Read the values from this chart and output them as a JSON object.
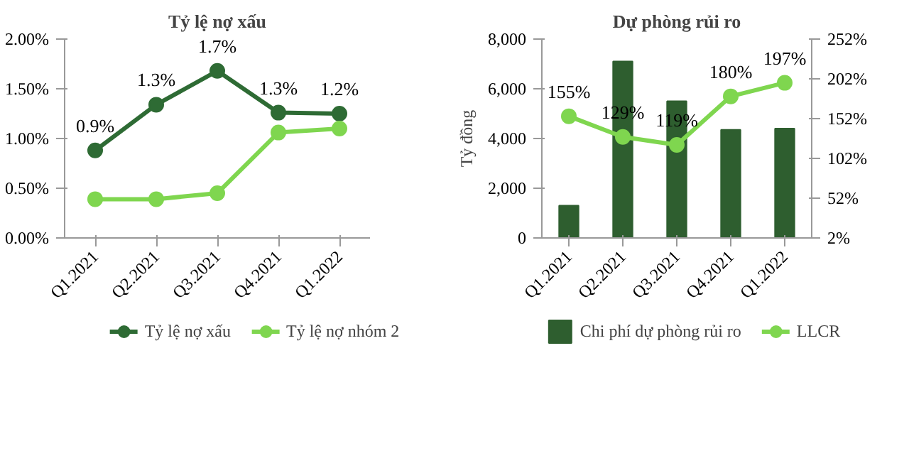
{
  "chart_data": [
    {
      "type": "line",
      "title": "Tỷ lệ nợ xấu",
      "categories": [
        "Q1.2021",
        "Q2.2021",
        "Q3.2021",
        "Q4.2021",
        "Q1.2022"
      ],
      "series": [
        {
          "name": "Tỷ lệ nợ xấu",
          "color": "#2e6b34",
          "values": [
            0.88,
            1.34,
            1.68,
            1.26,
            1.25
          ],
          "value_labels": [
            "0.9%",
            "1.3%",
            "1.7%",
            "1.3%",
            "1.2%"
          ]
        },
        {
          "name": "Tỷ lệ nợ nhóm 2",
          "color": "#7fd64f",
          "values": [
            0.39,
            0.39,
            0.45,
            1.06,
            1.1
          ]
        }
      ],
      "ylim": [
        0,
        2
      ],
      "yticks": [
        {
          "value": 0,
          "label": "0.00%"
        },
        {
          "value": 0.5,
          "label": "0.50%"
        },
        {
          "value": 1,
          "label": "1.00%"
        },
        {
          "value": 1.5,
          "label": "1.50%"
        },
        {
          "value": 2,
          "label": "2.00%"
        }
      ],
      "legend": "bottom",
      "marker": "circle",
      "line_style": "solid"
    },
    {
      "type": "bar",
      "title": "Dự phòng rủi ro",
      "ylabel": "Tỷ đồng",
      "categories": [
        "Q1.2021",
        "Q2.2021",
        "Q3.2021",
        "Q4.2021",
        "Q1.2022"
      ],
      "series": [
        {
          "name": "Chi phí dự phòng rủi ro",
          "color": "#2e5e2f",
          "values": [
            1300,
            7100,
            5500,
            4350,
            4400
          ]
        },
        {
          "name": "LLCR",
          "type": "line",
          "axis": "y2",
          "color": "#7fd64f",
          "values": [
            155,
            129,
            119,
            180,
            197
          ],
          "value_labels": [
            "155%",
            "129%",
            "119%",
            "180%",
            "197%"
          ]
        }
      ],
      "ylim": [
        0,
        8000
      ],
      "yticks": [
        0,
        {
          "value": 2000,
          "label": "2,000"
        },
        {
          "value": 4000,
          "label": "4,000"
        },
        {
          "value": 6000,
          "label": "6,000"
        },
        {
          "value": 8000,
          "label": "8,000"
        }
      ],
      "y2lim": [
        2,
        252
      ],
      "y2ticks": [
        {
          "value": 2,
          "label": "2%"
        },
        {
          "value": 52,
          "label": "52%"
        },
        {
          "value": 102,
          "label": "102%"
        },
        {
          "value": 152,
          "label": "152%"
        },
        {
          "value": 202,
          "label": "202%"
        },
        {
          "value": 252,
          "label": "252%"
        }
      ],
      "legend": "bottom",
      "marker": "circle",
      "line_style": "solid"
    }
  ]
}
